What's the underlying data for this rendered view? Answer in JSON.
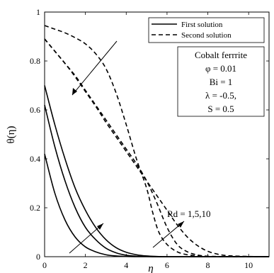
{
  "chart_data": {
    "type": "line",
    "xlabel": "η",
    "ylabel": "θ(η)",
    "xlim": [
      0,
      11
    ],
    "ylim": [
      0,
      1
    ],
    "xticks": [
      0,
      2,
      4,
      6,
      8,
      10
    ],
    "yticks": [
      0,
      0.2,
      0.4,
      0.6,
      0.8,
      1
    ],
    "xtick_labels": [
      "0",
      "2",
      "4",
      "6",
      "8",
      "10"
    ],
    "ytick_labels": [
      "0",
      "0.2",
      "0.4",
      "0.6",
      "0.8",
      "1"
    ],
    "grid": false,
    "legend": {
      "position": "top-right",
      "entries": [
        {
          "label": "First solution",
          "style": "solid"
        },
        {
          "label": "Second solution",
          "style": "dashed"
        }
      ]
    },
    "parameter_box": {
      "lines": [
        "Cobalt ferrrite",
        "φ = 0.01",
        "Bi = 1",
        "λ = -0.5,",
        "S = 0.5"
      ]
    },
    "annotation": "Rd = 1,5,10",
    "series": [
      {
        "style": "solid",
        "x": [
          0,
          0.5,
          1,
          1.5,
          2,
          2.5,
          3,
          3.5,
          4,
          5,
          6,
          8,
          11
        ],
        "y": [
          0.42,
          0.26,
          0.15,
          0.08,
          0.04,
          0.02,
          0.008,
          0.003,
          0.001,
          0,
          0,
          0,
          0
        ]
      },
      {
        "style": "solid",
        "x": [
          0,
          0.5,
          1,
          1.5,
          2,
          2.5,
          3,
          3.5,
          4,
          4.5,
          5,
          6,
          8,
          11
        ],
        "y": [
          0.62,
          0.45,
          0.31,
          0.2,
          0.12,
          0.07,
          0.035,
          0.016,
          0.006,
          0.002,
          0.001,
          0,
          0,
          0
        ]
      },
      {
        "style": "solid",
        "x": [
          0,
          0.5,
          1,
          1.5,
          2,
          2.5,
          3,
          3.5,
          4,
          4.5,
          5,
          5.5,
          6,
          8,
          11
        ],
        "y": [
          0.7,
          0.54,
          0.4,
          0.28,
          0.19,
          0.12,
          0.07,
          0.037,
          0.018,
          0.008,
          0.003,
          0.001,
          0,
          0,
          0
        ]
      },
      {
        "style": "dashed",
        "x": [
          0,
          0.5,
          1,
          1.5,
          2,
          2.5,
          3,
          3.5,
          4,
          4.5,
          5,
          5.3,
          5.6,
          6,
          6.5,
          7,
          7.5,
          8,
          9,
          10,
          11
        ],
        "y": [
          0.945,
          0.93,
          0.915,
          0.895,
          0.87,
          0.83,
          0.77,
          0.67,
          0.54,
          0.4,
          0.28,
          0.18,
          0.1,
          0.05,
          0.02,
          0.008,
          0.003,
          0.001,
          0,
          0,
          0
        ]
      },
      {
        "style": "dashed",
        "x": [
          0,
          0.5,
          1,
          1.5,
          2,
          2.5,
          3,
          3.5,
          4,
          4.5,
          5,
          5.5,
          6,
          6.5,
          7,
          7.5,
          8,
          9,
          10,
          11
        ],
        "y": [
          0.89,
          0.84,
          0.79,
          0.74,
          0.68,
          0.62,
          0.56,
          0.5,
          0.44,
          0.38,
          0.31,
          0.22,
          0.12,
          0.05,
          0.02,
          0.007,
          0.002,
          0,
          0,
          0
        ]
      },
      {
        "style": "dashed",
        "x": [
          0,
          0.5,
          1,
          1.5,
          2,
          2.5,
          3,
          3.5,
          4,
          4.5,
          5,
          5.5,
          6,
          6.5,
          7,
          7.5,
          8,
          8.5,
          9,
          10,
          11
        ],
        "y": [
          0.89,
          0.84,
          0.79,
          0.735,
          0.675,
          0.615,
          0.55,
          0.49,
          0.43,
          0.37,
          0.31,
          0.25,
          0.19,
          0.13,
          0.08,
          0.045,
          0.022,
          0.01,
          0.004,
          0.001,
          0
        ]
      }
    ]
  }
}
